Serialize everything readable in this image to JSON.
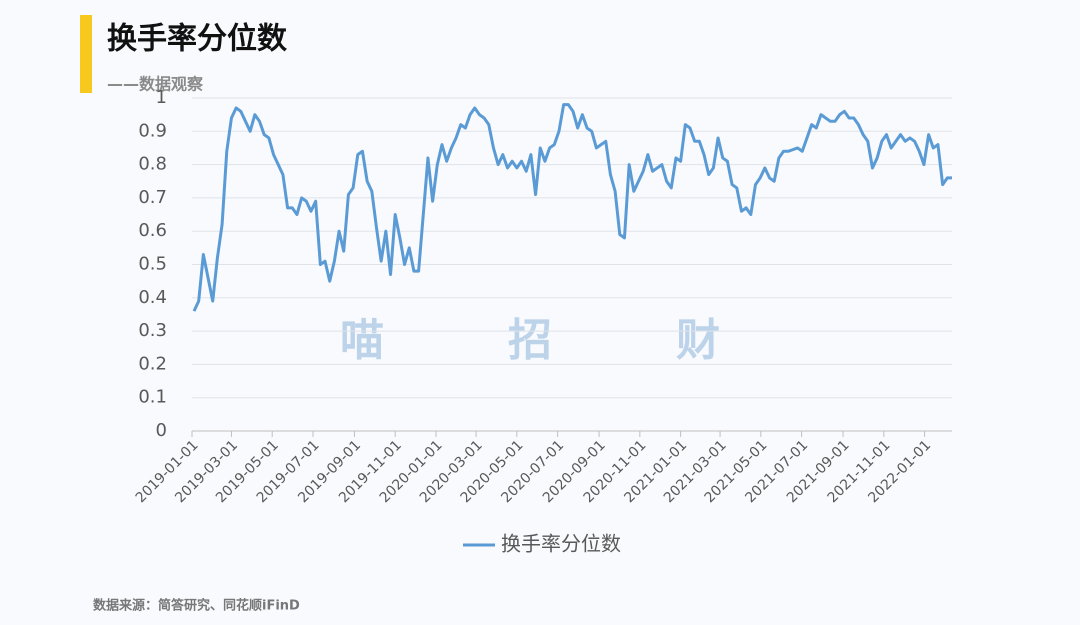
{
  "chart_data": {
    "type": "line",
    "title": "换手率分位数",
    "subtitle": "——数据观察",
    "watermark": "喵　招　财",
    "source": "数据来源：简答研究、同花顺iFinD",
    "x": [
      "2019-01-04",
      "2019-01-11",
      "2019-01-18",
      "2019-01-25",
      "2019-02-01",
      "2019-02-08",
      "2019-02-15",
      "2019-02-22",
      "2019-03-01",
      "2019-03-08",
      "2019-03-15",
      "2019-03-22",
      "2019-03-29",
      "2019-04-05",
      "2019-04-12",
      "2019-04-19",
      "2019-04-26",
      "2019-05-03",
      "2019-05-10",
      "2019-05-17",
      "2019-05-24",
      "2019-05-31",
      "2019-06-07",
      "2019-06-14",
      "2019-06-21",
      "2019-06-28",
      "2019-07-05",
      "2019-07-12",
      "2019-07-19",
      "2019-07-26",
      "2019-08-02",
      "2019-08-09",
      "2019-08-16",
      "2019-08-23",
      "2019-08-30",
      "2019-09-06",
      "2019-09-13",
      "2019-09-20",
      "2019-09-27",
      "2019-10-04",
      "2019-10-11",
      "2019-10-18",
      "2019-10-25",
      "2019-11-01",
      "2019-11-08",
      "2019-11-15",
      "2019-11-22",
      "2019-11-29",
      "2019-12-06",
      "2019-12-13",
      "2019-12-20",
      "2019-12-27",
      "2020-01-03",
      "2020-01-10",
      "2020-01-17",
      "2020-01-24",
      "2020-01-31",
      "2020-02-07",
      "2020-02-14",
      "2020-02-21",
      "2020-02-28",
      "2020-03-06",
      "2020-03-13",
      "2020-03-20",
      "2020-03-27",
      "2020-04-03",
      "2020-04-10",
      "2020-04-17",
      "2020-04-24",
      "2020-05-01",
      "2020-05-08",
      "2020-05-15",
      "2020-05-22",
      "2020-05-29",
      "2020-06-05",
      "2020-06-12",
      "2020-06-19",
      "2020-06-26",
      "2020-07-03",
      "2020-07-10",
      "2020-07-17",
      "2020-07-24",
      "2020-07-31",
      "2020-08-07",
      "2020-08-14",
      "2020-08-21",
      "2020-08-28",
      "2020-09-04",
      "2020-09-11",
      "2020-09-18",
      "2020-09-25",
      "2020-10-02",
      "2020-10-09",
      "2020-10-16",
      "2020-10-23",
      "2020-10-30",
      "2020-11-06",
      "2020-11-13",
      "2020-11-20",
      "2020-11-27",
      "2020-12-04",
      "2020-12-11",
      "2020-12-18",
      "2020-12-25",
      "2021-01-01",
      "2021-01-08",
      "2021-01-15",
      "2021-01-22",
      "2021-01-29",
      "2021-02-05",
      "2021-02-12",
      "2021-02-19",
      "2021-02-26",
      "2021-03-05",
      "2021-03-12",
      "2021-03-19",
      "2021-03-26",
      "2021-04-02",
      "2021-04-09",
      "2021-04-16",
      "2021-04-23",
      "2021-04-30",
      "2021-05-07",
      "2021-05-14",
      "2021-05-21",
      "2021-05-28",
      "2021-06-04",
      "2021-06-11",
      "2021-06-18",
      "2021-06-25",
      "2021-07-02",
      "2021-07-09",
      "2021-07-16",
      "2021-07-23",
      "2021-07-30",
      "2021-08-06",
      "2021-08-13",
      "2021-08-20",
      "2021-08-27",
      "2021-09-03",
      "2021-09-10",
      "2021-09-17",
      "2021-09-24",
      "2021-10-01",
      "2021-10-08",
      "2021-10-15",
      "2021-10-22",
      "2021-10-29",
      "2021-11-05",
      "2021-11-12",
      "2021-11-19",
      "2021-11-26",
      "2021-12-03",
      "2021-12-10",
      "2021-12-17",
      "2021-12-24",
      "2021-12-31",
      "2022-01-07",
      "2022-01-14",
      "2022-01-21",
      "2022-01-28",
      "2022-02-04",
      "2022-02-11"
    ],
    "series": [
      {
        "name": "换手率分位数",
        "color": "#5b9bd5",
        "values": [
          0.36,
          0.39,
          0.53,
          0.46,
          0.39,
          0.52,
          0.62,
          0.84,
          0.94,
          0.97,
          0.96,
          0.93,
          0.9,
          0.95,
          0.93,
          0.89,
          0.88,
          0.83,
          0.8,
          0.77,
          0.67,
          0.67,
          0.65,
          0.7,
          0.69,
          0.66,
          0.69,
          0.5,
          0.51,
          0.45,
          0.51,
          0.6,
          0.54,
          0.71,
          0.73,
          0.83,
          0.84,
          0.75,
          0.72,
          0.61,
          0.51,
          0.6,
          0.47,
          0.65,
          0.58,
          0.5,
          0.55,
          0.48,
          0.48,
          0.65,
          0.82,
          0.69,
          0.8,
          0.86,
          0.81,
          0.85,
          0.88,
          0.92,
          0.91,
          0.95,
          0.97,
          0.95,
          0.94,
          0.92,
          0.85,
          0.8,
          0.83,
          0.79,
          0.81,
          0.79,
          0.81,
          0.78,
          0.83,
          0.71,
          0.85,
          0.81,
          0.85,
          0.86,
          0.9,
          0.98,
          0.98,
          0.96,
          0.91,
          0.95,
          0.91,
          0.9,
          0.85,
          0.86,
          0.87,
          0.77,
          0.72,
          0.59,
          0.58,
          0.8,
          0.72,
          0.75,
          0.78,
          0.83,
          0.78,
          0.79,
          0.8,
          0.75,
          0.73,
          0.82,
          0.81,
          0.92,
          0.91,
          0.87,
          0.87,
          0.83,
          0.77,
          0.79,
          0.88,
          0.82,
          0.81,
          0.74,
          0.73,
          0.66,
          0.67,
          0.65,
          0.74,
          0.76,
          0.79,
          0.76,
          0.75,
          0.82,
          0.84,
          0.84,
          0.845,
          0.85,
          0.84,
          0.88,
          0.92,
          0.91,
          0.95,
          0.94,
          0.93,
          0.93,
          0.95,
          0.96,
          0.94,
          0.94,
          0.92,
          0.89,
          0.87,
          0.79,
          0.82,
          0.87,
          0.89,
          0.85,
          0.87,
          0.89,
          0.87,
          0.88,
          0.87,
          0.84,
          0.8,
          0.89,
          0.85,
          0.86,
          0.74,
          0.76,
          0.76
        ]
      }
    ],
    "xlim": [
      "2019-01-01",
      "2022-02-11"
    ],
    "xticks": [
      "2019-01-01",
      "2019-03-01",
      "2019-05-01",
      "2019-07-01",
      "2019-09-01",
      "2019-11-01",
      "2020-01-01",
      "2020-03-01",
      "2020-05-01",
      "2020-07-01",
      "2020-09-01",
      "2020-11-01",
      "2021-01-01",
      "2021-03-01",
      "2021-05-01",
      "2021-07-01",
      "2021-09-01",
      "2021-11-01",
      "2022-01-01"
    ],
    "ylim": [
      0,
      1
    ],
    "yticks": [
      0,
      0.1,
      0.2,
      0.3,
      0.4,
      0.5,
      0.6,
      0.7,
      0.8,
      0.9,
      1
    ],
    "grid": true,
    "legend": "bottom"
  }
}
